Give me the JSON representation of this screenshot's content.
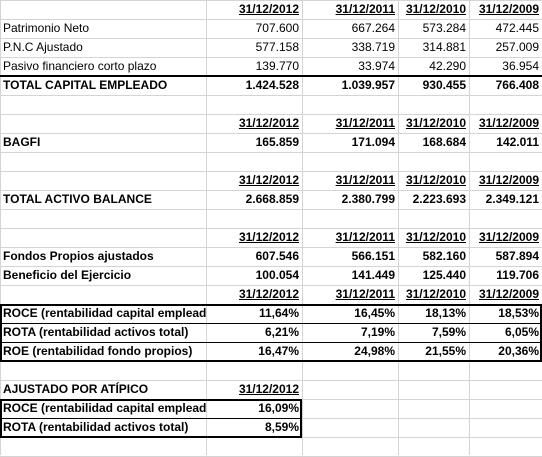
{
  "header_years": [
    "31/12/2012",
    "31/12/2011",
    "31/12/2010",
    "31/12/2009"
  ],
  "section1": {
    "rows": [
      {
        "label": "Patrimonio Neto",
        "values": [
          "707.600",
          "667.264",
          "573.284",
          "472.445"
        ]
      },
      {
        "label": "P.N.C Ajustado",
        "values": [
          "577.158",
          "338.719",
          "314.881",
          "257.009"
        ]
      },
      {
        "label": "Pasivo financiero corto plazo",
        "values": [
          "139.770",
          "33.974",
          "42.290",
          "36.954"
        ]
      }
    ],
    "total": {
      "label": "TOTAL CAPITAL EMPLEADO",
      "values": [
        "1.424.528",
        "1.039.957",
        "930.455",
        "766.408"
      ]
    }
  },
  "section2": {
    "label": "BAGFI",
    "values": [
      "165.859",
      "171.094",
      "168.684",
      "142.011"
    ]
  },
  "section3": {
    "label": "TOTAL ACTIVO BALANCE",
    "values": [
      "2.668.859",
      "2.380.799",
      "2.223.693",
      "2.349.121"
    ]
  },
  "section4": {
    "rows": [
      {
        "label": "Fondos Propios ajustados",
        "values": [
          "607.546",
          "566.151",
          "582.160",
          "587.894"
        ]
      },
      {
        "label": "Beneficio del Ejercicio",
        "values": [
          "100.054",
          "141.449",
          "125.440",
          "119.706"
        ]
      }
    ]
  },
  "section5": {
    "rows": [
      {
        "label": "ROCE (rentabilidad capital empleado)",
        "values": [
          "11,64%",
          "16,45%",
          "18,13%",
          "18,53%"
        ]
      },
      {
        "label": "ROTA (rentabilidad activos total)",
        "values": [
          "6,21%",
          "7,19%",
          "7,59%",
          "6,05%"
        ]
      },
      {
        "label": "ROE (rentabilidad fondo propios)",
        "values": [
          "16,47%",
          "24,98%",
          "21,55%",
          "20,36%"
        ]
      }
    ]
  },
  "section6": {
    "title": "AJUSTADO POR ATÍPICO",
    "year": "31/12/2012",
    "rows": [
      {
        "label": "ROCE (rentabilidad capital empleado)",
        "value": "16,09%"
      },
      {
        "label": "ROTA (rentabilidad activos total)",
        "value": "8,59%"
      }
    ]
  }
}
